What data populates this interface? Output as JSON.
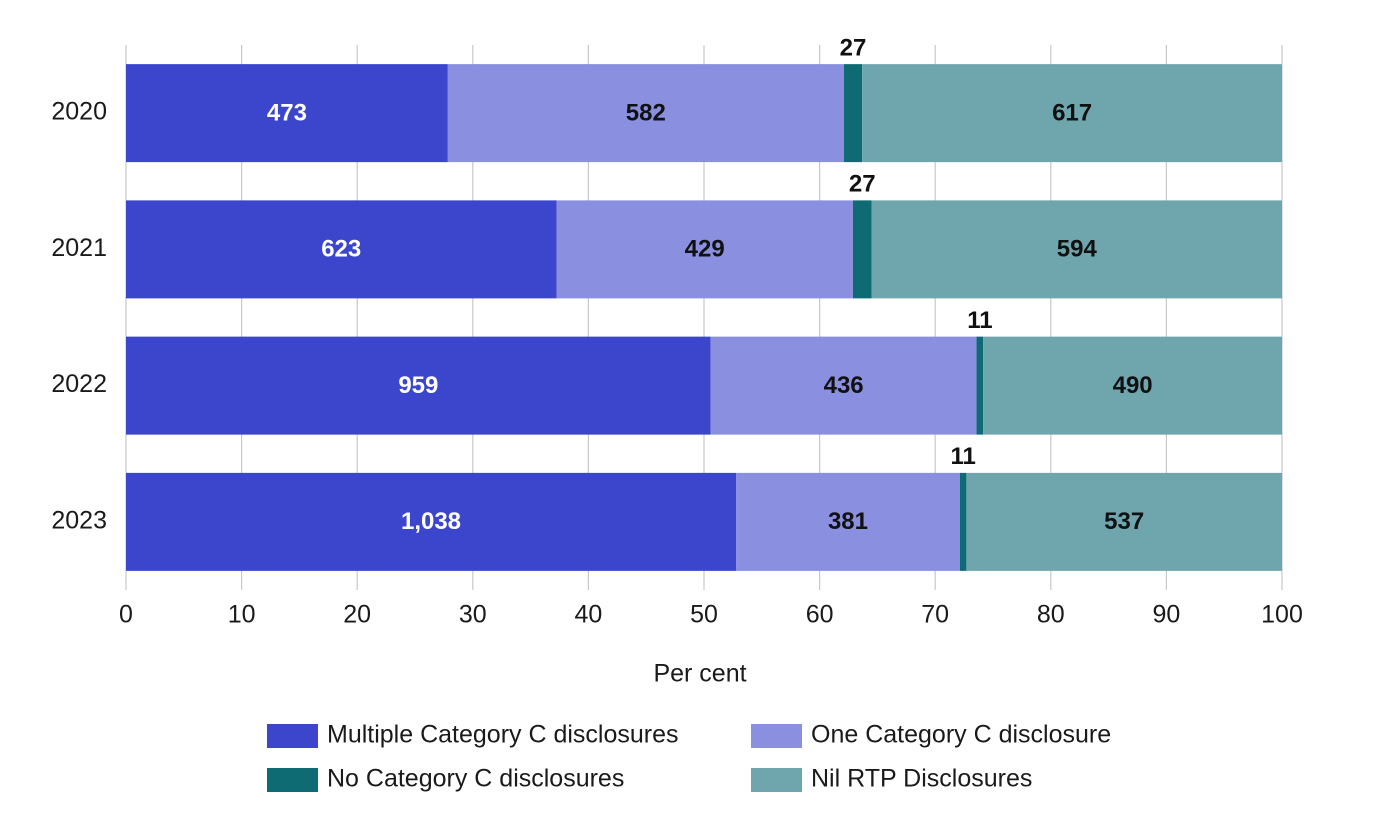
{
  "chart_data": {
    "type": "bar",
    "orientation": "horizontal",
    "stacking": "percent",
    "categories": [
      "2020",
      "2021",
      "2022",
      "2023"
    ],
    "series": [
      {
        "name": "Multiple Category C disclosures",
        "color": "#3b46cc",
        "values": [
          473,
          623,
          959,
          1038
        ],
        "value_labels": [
          "473",
          "623",
          "959",
          "1,038"
        ]
      },
      {
        "name": "One Category C disclosure",
        "color": "#8a8fe0",
        "values": [
          582,
          429,
          436,
          381
        ]
      },
      {
        "name": "No Category C disclosures",
        "color": "#0f6b73",
        "values": [
          27,
          27,
          11,
          11
        ]
      },
      {
        "name": "Nil RTP Disclosures",
        "color": "#6fa6ae",
        "values": [
          617,
          594,
          490,
          537
        ]
      }
    ],
    "x_label": "Per cent",
    "xlim": [
      0,
      100
    ],
    "xticks": [
      0,
      10,
      20,
      30,
      40,
      50,
      60,
      70,
      80,
      90,
      100
    ],
    "grid": true,
    "legend": "bottom"
  }
}
